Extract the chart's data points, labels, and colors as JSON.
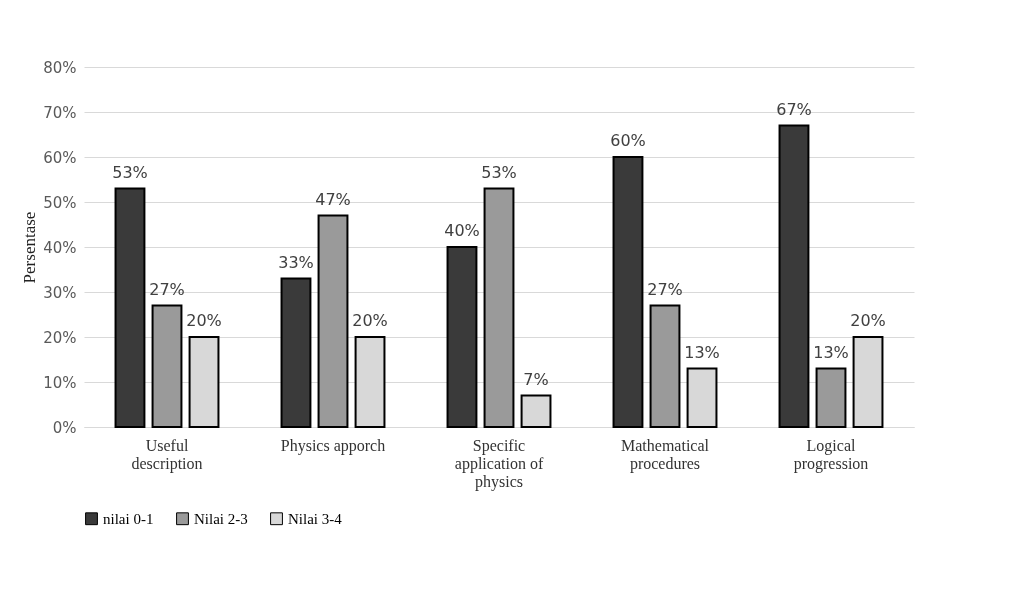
{
  "chart_data": {
    "type": "bar",
    "ylabel": "Persentase",
    "categories": [
      "Useful description",
      "Physics apporch",
      "Specific application of physics",
      "Mathematical procedures",
      "Logical progression"
    ],
    "series": [
      {
        "name": "nilai 0-1",
        "color": "#3a3a3a",
        "values": [
          53,
          33,
          40,
          60,
          67
        ],
        "value_labels": [
          "53%",
          "33%",
          "40%",
          "60%",
          "67%"
        ]
      },
      {
        "name": "Nilai 2-3",
        "color": "#9a9a9a",
        "values": [
          27,
          47,
          53,
          27,
          13
        ],
        "value_labels": [
          "27%",
          "47%",
          "53%",
          "27%",
          "13%"
        ]
      },
      {
        "name": "Nilai 3-4",
        "color": "#d8d8d8",
        "values": [
          20,
          20,
          7,
          13,
          20
        ],
        "value_labels": [
          "20%",
          "20%",
          "7%",
          "13%",
          "20%"
        ]
      }
    ],
    "ylim": [
      0,
      80
    ],
    "yticks": [
      {
        "value": 0,
        "label": "0%"
      },
      {
        "value": 10,
        "label": "10%"
      },
      {
        "value": 20,
        "label": "20%"
      },
      {
        "value": 30,
        "label": "30%"
      },
      {
        "value": 40,
        "label": "40%"
      },
      {
        "value": 50,
        "label": "50%"
      },
      {
        "value": 60,
        "label": "60%"
      },
      {
        "value": 70,
        "label": "70%"
      },
      {
        "value": 80,
        "label": "80%"
      }
    ],
    "grid": "y",
    "legend": "bottom"
  }
}
